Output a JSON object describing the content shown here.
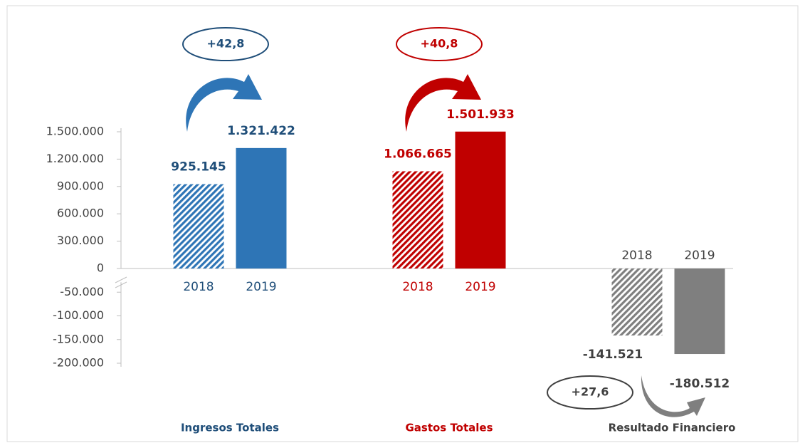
{
  "chart_data": {
    "type": "bar",
    "categories": [
      "Ingresos Totales",
      "Gastos Totales",
      "Resultado Financiero"
    ],
    "category_colors": [
      "#2e75b6",
      "#c00000",
      "#7f7f7f"
    ],
    "label_colors": [
      "#1f4e79",
      "#c00000",
      "#404040"
    ],
    "series": [
      {
        "name": "2018",
        "hatched": true,
        "values": [
          925145,
          1066665,
          -141521
        ],
        "value_labels": [
          "925.145",
          "1.066.665",
          "-141.521"
        ]
      },
      {
        "name": "2019",
        "hatched": false,
        "values": [
          1321422,
          1501933,
          -180512
        ],
        "value_labels": [
          "1.321.422",
          "1.501.933",
          "-180.512"
        ]
      }
    ],
    "changes": [
      "+42,8",
      "+40,8",
      "+27,6"
    ],
    "ylim": [
      -200000,
      1500000
    ],
    "yticks": [
      {
        "value": 1500000,
        "label": "1.500.000"
      },
      {
        "value": 1200000,
        "label": "1.200.000"
      },
      {
        "value": 900000,
        "label": "900.000"
      },
      {
        "value": 600000,
        "label": "600.000"
      },
      {
        "value": 300000,
        "label": "300.000"
      },
      0,
      {
        "value": -50000,
        "label": "-50.000"
      },
      {
        "value": -100000,
        "label": "-100.000"
      },
      {
        "value": -150000,
        "label": "-150.000"
      },
      {
        "value": -200000,
        "label": "-200.000"
      }
    ],
    "broken_axis": true
  }
}
